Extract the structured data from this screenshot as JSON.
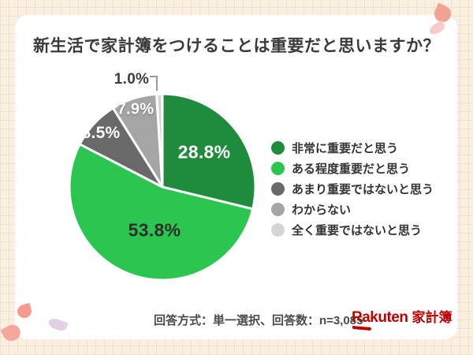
{
  "page": {
    "title": "新生活で家計簿をつけることは重要だと思いますか？",
    "footer": {
      "note": "回答方式：単一選択、回答数：n=3,085"
    },
    "brand": {
      "wordmark": "Rakuten",
      "product": "家計簿",
      "color": "#bf0000"
    }
  },
  "chart_data": {
    "type": "pie",
    "title": "新生活で家計簿をつけることは重要だと思いますか？",
    "unit": "%",
    "start_angle_deg": 0,
    "direction": "clockwise",
    "legend_position": "right",
    "categories": [
      "非常に重要だと思う",
      "ある程度重要だと思う",
      "あまり重要ではないと思う",
      "わからない",
      "全く重要ではないと思う"
    ],
    "values": [
      28.8,
      53.8,
      8.5,
      7.9,
      1.0
    ],
    "slice_labels": [
      "28.8%",
      "53.8%",
      "8.5%",
      "7.9%",
      "1.0%"
    ],
    "colors": [
      "#1e8c3c",
      "#2bc650",
      "#696969",
      "#a5a5a5",
      "#d5d5d5"
    ],
    "response_format": "単一選択",
    "n": "3,085"
  }
}
